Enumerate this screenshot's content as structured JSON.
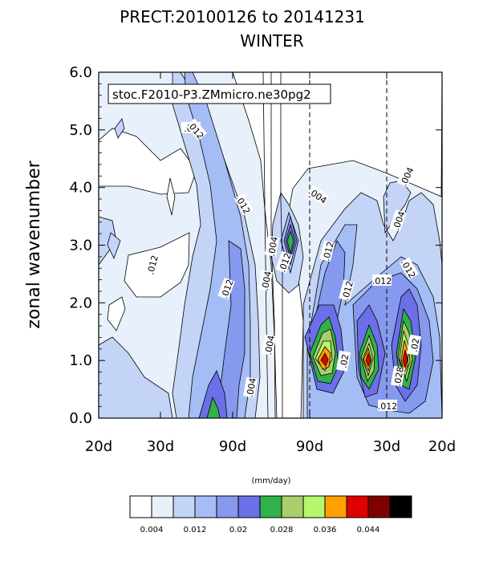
{
  "chart_data": {
    "type": "contour",
    "title": "PRECT:20100126 to 20141231",
    "subtitle": "WINTER",
    "annotation": "stoc.F2010-P3.ZMmicro.ne30pg2",
    "ylabel": "zonal wavenumber",
    "xlabel": "",
    "ylim": [
      0.0,
      6.0
    ],
    "y_ticks": [
      {
        "value": 0.0,
        "label": "0.0"
      },
      {
        "value": 1.0,
        "label": "1.0"
      },
      {
        "value": 2.0,
        "label": "2.0"
      },
      {
        "value": 3.0,
        "label": "3.0"
      },
      {
        "value": 4.0,
        "label": "4.0"
      },
      {
        "value": 5.0,
        "label": "5.0"
      },
      {
        "value": 6.0,
        "label": "6.0"
      }
    ],
    "x_tick_labels": [
      "20d",
      "30d",
      "90d",
      "90d",
      "30d",
      "20d"
    ],
    "reference_periods": [
      "90d",
      "30d"
    ],
    "contour_labels": [
      ".012",
      ".012",
      ".012",
      ".004",
      ".012",
      ".004",
      ".004",
      ".004",
      ".004",
      ".012",
      ".004",
      ".012",
      ".012",
      ".004",
      ".012",
      ".012",
      ".02",
      ".012",
      ".02",
      ".028",
      ".02",
      ".012"
    ],
    "colorbar": {
      "units": "(mm/day)",
      "levels": [
        0.004,
        0.008,
        0.012,
        0.016,
        0.02,
        0.024,
        0.028,
        0.032,
        0.036,
        0.04,
        0.044,
        0.048
      ],
      "tick_labels": [
        "0.004",
        "0.012",
        "0.02",
        "0.028",
        "0.036",
        "0.044"
      ],
      "colors": [
        "#ffffff",
        "#e8f1fb",
        "#c3d4f7",
        "#a5bdf5",
        "#8699ee",
        "#6b6fe8",
        "#32b04a",
        "#a9cf6b",
        "#b5f76c",
        "#ffa000",
        "#e00000",
        "#800000",
        "#000000"
      ]
    },
    "features": [
      {
        "kind": "peak",
        "x_label": "90d",
        "wavenumber": 1.0,
        "max_value": 0.044
      },
      {
        "kind": "peak",
        "x_label": "30d",
        "wavenumber": 1.0,
        "max_value": 0.044
      },
      {
        "kind": "peak",
        "x_label": "30d",
        "wavenumber": 1.0,
        "max_value": 0.044
      },
      {
        "kind": "peak",
        "x_label": "90d",
        "wavenumber": 3.0,
        "max_value": 0.028
      },
      {
        "kind": "peak",
        "x_label": "90d",
        "wavenumber": 0.0,
        "max_value": 0.028
      }
    ]
  }
}
